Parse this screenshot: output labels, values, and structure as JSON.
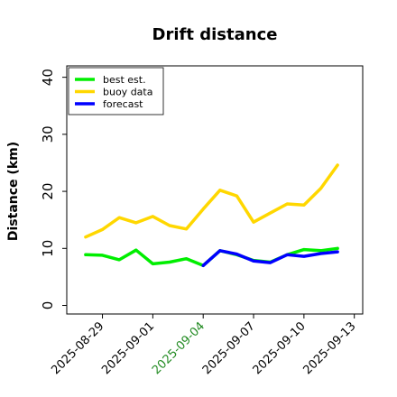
{
  "chart_data": {
    "type": "line",
    "title": "Drift distance",
    "ylabel": "Distance (km)",
    "xlabel": "",
    "ylim": [
      -1.5,
      42
    ],
    "xlim": [
      "2025-08-26T21:00",
      "2025-09-13T12:00"
    ],
    "yticks": [
      0,
      10,
      20,
      30,
      40
    ],
    "xticks": [
      {
        "date": "2025-08-29",
        "label": "2025-08-29",
        "color": "#000000"
      },
      {
        "date": "2025-09-01",
        "label": "2025-09-01",
        "color": "#000000"
      },
      {
        "date": "2025-09-04",
        "label": "2025-09-04",
        "color": "#228B22"
      },
      {
        "date": "2025-09-07",
        "label": "2025-09-07",
        "color": "#000000"
      },
      {
        "date": "2025-09-10",
        "label": "2025-09-10",
        "color": "#000000"
      },
      {
        "date": "2025-09-13",
        "label": "2025-09-13",
        "color": "#000000"
      }
    ],
    "grid": false,
    "legend_position": "top-left",
    "series": [
      {
        "name": "buoy data",
        "color": "#FFD700",
        "x": [
          "2025-08-28",
          "2025-08-29",
          "2025-08-30",
          "2025-08-31",
          "2025-09-01",
          "2025-09-02",
          "2025-09-03",
          "2025-09-04",
          "2025-09-05",
          "2025-09-06",
          "2025-09-07",
          "2025-09-08",
          "2025-09-09",
          "2025-09-10",
          "2025-09-11",
          "2025-09-12"
        ],
        "y": [
          12.0,
          13.3,
          15.4,
          14.5,
          15.6,
          14.0,
          13.4,
          16.9,
          20.2,
          19.2,
          14.6,
          16.2,
          17.8,
          17.6,
          20.5,
          24.6
        ]
      },
      {
        "name": "best est.",
        "color": "#00EE00",
        "x": [
          "2025-08-28",
          "2025-08-29",
          "2025-08-30",
          "2025-08-31",
          "2025-09-01",
          "2025-09-02",
          "2025-09-03",
          "2025-09-04",
          "2025-09-05",
          "2025-09-06",
          "2025-09-07",
          "2025-09-08",
          "2025-09-09",
          "2025-09-10",
          "2025-09-11",
          "2025-09-12"
        ],
        "y": [
          8.9,
          8.8,
          8.0,
          9.7,
          7.3,
          7.6,
          8.2,
          7.0,
          9.6,
          8.9,
          7.9,
          7.6,
          8.9,
          9.8,
          9.6,
          10.0
        ]
      },
      {
        "name": "forecast",
        "color": "#0000FF",
        "x": [
          "2025-09-04",
          "2025-09-05",
          "2025-09-06",
          "2025-09-07",
          "2025-09-08",
          "2025-09-09",
          "2025-09-10",
          "2025-09-11",
          "2025-09-12"
        ],
        "y": [
          7.0,
          9.6,
          9.0,
          7.8,
          7.5,
          8.9,
          8.6,
          9.1,
          9.4
        ]
      }
    ],
    "legend": [
      {
        "name": "best est.",
        "color": "#00EE00"
      },
      {
        "name": "buoy data",
        "color": "#FFD700"
      },
      {
        "name": "forecast",
        "color": "#0000FF"
      }
    ]
  }
}
